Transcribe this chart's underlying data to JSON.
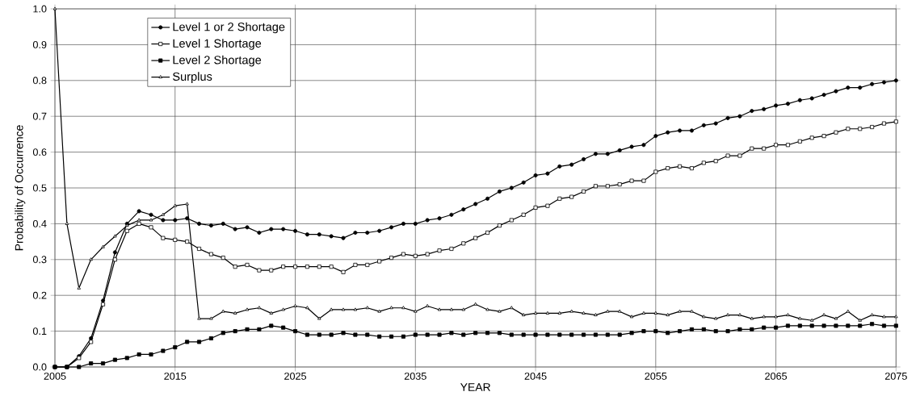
{
  "chart_data": {
    "type": "line",
    "xlabel": "YEAR",
    "ylabel": "Probability of Occurrence",
    "x": [
      2005,
      2006,
      2007,
      2008,
      2009,
      2010,
      2011,
      2012,
      2013,
      2014,
      2015,
      2016,
      2017,
      2018,
      2019,
      2020,
      2021,
      2022,
      2023,
      2024,
      2025,
      2026,
      2027,
      2028,
      2029,
      2030,
      2031,
      2032,
      2033,
      2034,
      2035,
      2036,
      2037,
      2038,
      2039,
      2040,
      2041,
      2042,
      2043,
      2044,
      2045,
      2046,
      2047,
      2048,
      2049,
      2050,
      2051,
      2052,
      2053,
      2054,
      2055,
      2056,
      2057,
      2058,
      2059,
      2060,
      2061,
      2062,
      2063,
      2064,
      2065,
      2066,
      2067,
      2068,
      2069,
      2070,
      2071,
      2072,
      2073,
      2074,
      2075
    ],
    "series": [
      {
        "name": "Level 1 or 2 Shortage",
        "color": "#000000",
        "marker": "circle",
        "values": [
          0,
          0,
          0.03,
          0.08,
          0.185,
          0.32,
          0.4,
          0.435,
          0.425,
          0.41,
          0.41,
          0.415,
          0.4,
          0.395,
          0.4,
          0.385,
          0.39,
          0.375,
          0.385,
          0.385,
          0.38,
          0.37,
          0.37,
          0.365,
          0.36,
          0.375,
          0.375,
          0.38,
          0.39,
          0.4,
          0.4,
          0.41,
          0.415,
          0.425,
          0.44,
          0.455,
          0.47,
          0.49,
          0.5,
          0.515,
          0.535,
          0.54,
          0.56,
          0.565,
          0.58,
          0.595,
          0.595,
          0.605,
          0.615,
          0.62,
          0.645,
          0.655,
          0.66,
          0.66,
          0.675,
          0.68,
          0.695,
          0.7,
          0.715,
          0.72,
          0.73,
          0.735,
          0.745,
          0.75,
          0.76,
          0.77,
          0.78,
          0.78,
          0.79,
          0.795,
          0.8
        ]
      },
      {
        "name": "Level 1 Shortage",
        "color": "#000000",
        "marker": "square",
        "values": [
          0,
          0,
          0.025,
          0.07,
          0.175,
          0.3,
          0.38,
          0.4,
          0.39,
          0.36,
          0.355,
          0.35,
          0.33,
          0.315,
          0.305,
          0.28,
          0.285,
          0.27,
          0.27,
          0.28,
          0.28,
          0.28,
          0.28,
          0.28,
          0.265,
          0.285,
          0.285,
          0.295,
          0.305,
          0.315,
          0.31,
          0.315,
          0.325,
          0.33,
          0.345,
          0.36,
          0.375,
          0.395,
          0.41,
          0.425,
          0.445,
          0.45,
          0.47,
          0.475,
          0.49,
          0.505,
          0.505,
          0.51,
          0.52,
          0.52,
          0.545,
          0.555,
          0.56,
          0.555,
          0.57,
          0.575,
          0.59,
          0.59,
          0.61,
          0.61,
          0.62,
          0.62,
          0.63,
          0.64,
          0.645,
          0.655,
          0.665,
          0.665,
          0.67,
          0.68,
          0.685
        ]
      },
      {
        "name": "Level 2 Shortage",
        "color": "#000000",
        "marker": "square",
        "values": [
          0,
          0,
          0,
          0.01,
          0.01,
          0.02,
          0.025,
          0.035,
          0.035,
          0.045,
          0.055,
          0.07,
          0.07,
          0.08,
          0.095,
          0.1,
          0.105,
          0.105,
          0.115,
          0.11,
          0.1,
          0.09,
          0.09,
          0.09,
          0.095,
          0.09,
          0.09,
          0.085,
          0.085,
          0.085,
          0.09,
          0.09,
          0.09,
          0.095,
          0.09,
          0.095,
          0.095,
          0.095,
          0.09,
          0.09,
          0.09,
          0.09,
          0.09,
          0.09,
          0.09,
          0.09,
          0.09,
          0.09,
          0.095,
          0.1,
          0.1,
          0.095,
          0.1,
          0.105,
          0.105,
          0.1,
          0.1,
          0.105,
          0.105,
          0.11,
          0.11,
          0.115,
          0.115,
          0.115,
          0.115,
          0.115,
          0.115,
          0.115,
          0.12,
          0.115,
          0.115
        ]
      },
      {
        "name": "Surplus",
        "color": "#000000",
        "marker": "triangle",
        "values": [
          1.0,
          0.4,
          0.22,
          0.3,
          0.335,
          0.365,
          0.395,
          0.41,
          0.41,
          0.425,
          0.45,
          0.455,
          0.135,
          0.135,
          0.155,
          0.15,
          0.16,
          0.165,
          0.15,
          0.16,
          0.17,
          0.165,
          0.135,
          0.16,
          0.16,
          0.16,
          0.165,
          0.155,
          0.165,
          0.165,
          0.155,
          0.17,
          0.16,
          0.16,
          0.16,
          0.175,
          0.16,
          0.155,
          0.165,
          0.145,
          0.15,
          0.15,
          0.15,
          0.155,
          0.15,
          0.145,
          0.155,
          0.155,
          0.14,
          0.15,
          0.15,
          0.145,
          0.155,
          0.155,
          0.14,
          0.135,
          0.145,
          0.145,
          0.135,
          0.14,
          0.14,
          0.145,
          0.135,
          0.13,
          0.145,
          0.135,
          0.155,
          0.13,
          0.145,
          0.14,
          0.14
        ]
      }
    ],
    "xlim": [
      2005,
      2075
    ],
    "xticks": [
      2005,
      2015,
      2025,
      2035,
      2045,
      2055,
      2065,
      2075
    ],
    "ylim": [
      0,
      1
    ],
    "yticks": [
      {
        "value": 0,
        "label": "0.0"
      },
      {
        "value": 0.1,
        "label": "0.1"
      },
      {
        "value": 0.2,
        "label": "0.2"
      },
      {
        "value": 0.3,
        "label": "0.3"
      },
      {
        "value": 0.4,
        "label": "0.4"
      },
      {
        "value": 0.5,
        "label": "0.5"
      },
      {
        "value": 0.6,
        "label": "0.6"
      },
      {
        "value": 0.7,
        "label": "0.7"
      },
      {
        "value": 0.8,
        "label": "0.8"
      },
      {
        "value": 0.9,
        "label": "0.9"
      },
      {
        "value": 1,
        "label": "1.0"
      }
    ],
    "grid": true,
    "legend": "top left",
    "line_style": "solid"
  }
}
